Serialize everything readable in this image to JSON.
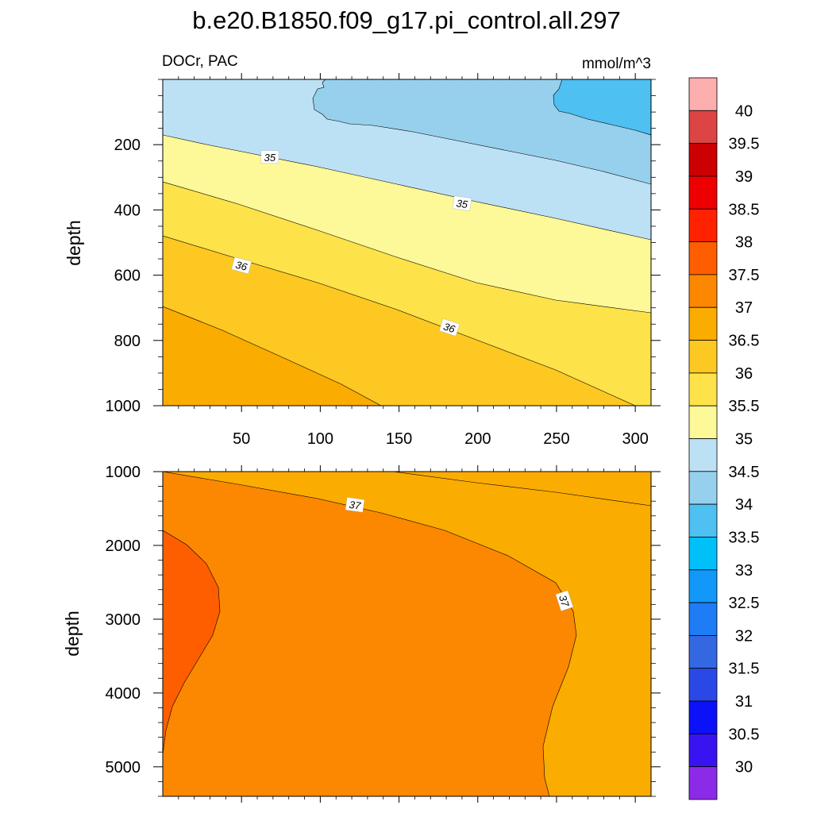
{
  "chart_data": {
    "type": "contour",
    "title": "b.e20.B1850.f09_g17.pi_control.all.297",
    "colorbar": {
      "levels": [
        "30",
        "30.5",
        "31",
        "31.5",
        "32",
        "32.5",
        "33",
        "33.5",
        "34",
        "34.5",
        "35",
        "35.5",
        "36",
        "36.5",
        "37",
        "37.5",
        "38",
        "38.5",
        "39",
        "39.5",
        "40"
      ],
      "colors": [
        "#8b2be8",
        "#3a14f0",
        "#0c12f8",
        "#2a48e6",
        "#3468e2",
        "#1e7cf4",
        "#1298f8",
        "#00c0f8",
        "#4ec0f2",
        "#96d0ec",
        "#bde1f4",
        "#fdf898",
        "#fde24a",
        "#fdc822",
        "#fbac00",
        "#fb8800",
        "#ff5e00",
        "#ff2200",
        "#ee0000",
        "#cc0000",
        "#dd4444",
        "#fdaeae"
      ]
    },
    "panels": [
      {
        "id": "upper",
        "left_string": "DOCr, PAC",
        "right_string": "mmol/m^3",
        "ylabel": "depth",
        "xlim": [
          0,
          310
        ],
        "ylim": [
          1000,
          0
        ],
        "xticks": [
          "50",
          "100",
          "150",
          "200",
          "250",
          "300"
        ],
        "yticks": [
          "200",
          "400",
          "600",
          "800",
          "1000"
        ],
        "contour_labels": [
          {
            "text": "35",
            "x": 68,
            "y": 238
          },
          {
            "text": "35",
            "x": 190,
            "y": 380
          },
          {
            "text": "36",
            "x": 50,
            "y": 570
          },
          {
            "text": "36",
            "x": 182,
            "y": 760
          }
        ]
      },
      {
        "id": "lower",
        "ylabel": "depth",
        "xlim": [
          0,
          310
        ],
        "ylim": [
          5400,
          1000
        ],
        "yticks": [
          "1000",
          "2000",
          "3000",
          "4000",
          "5000"
        ],
        "contour_labels": [
          {
            "text": "37",
            "x": 122,
            "y": 1450
          },
          {
            "text": "37",
            "x": 255,
            "y": 2750
          }
        ]
      }
    ]
  }
}
